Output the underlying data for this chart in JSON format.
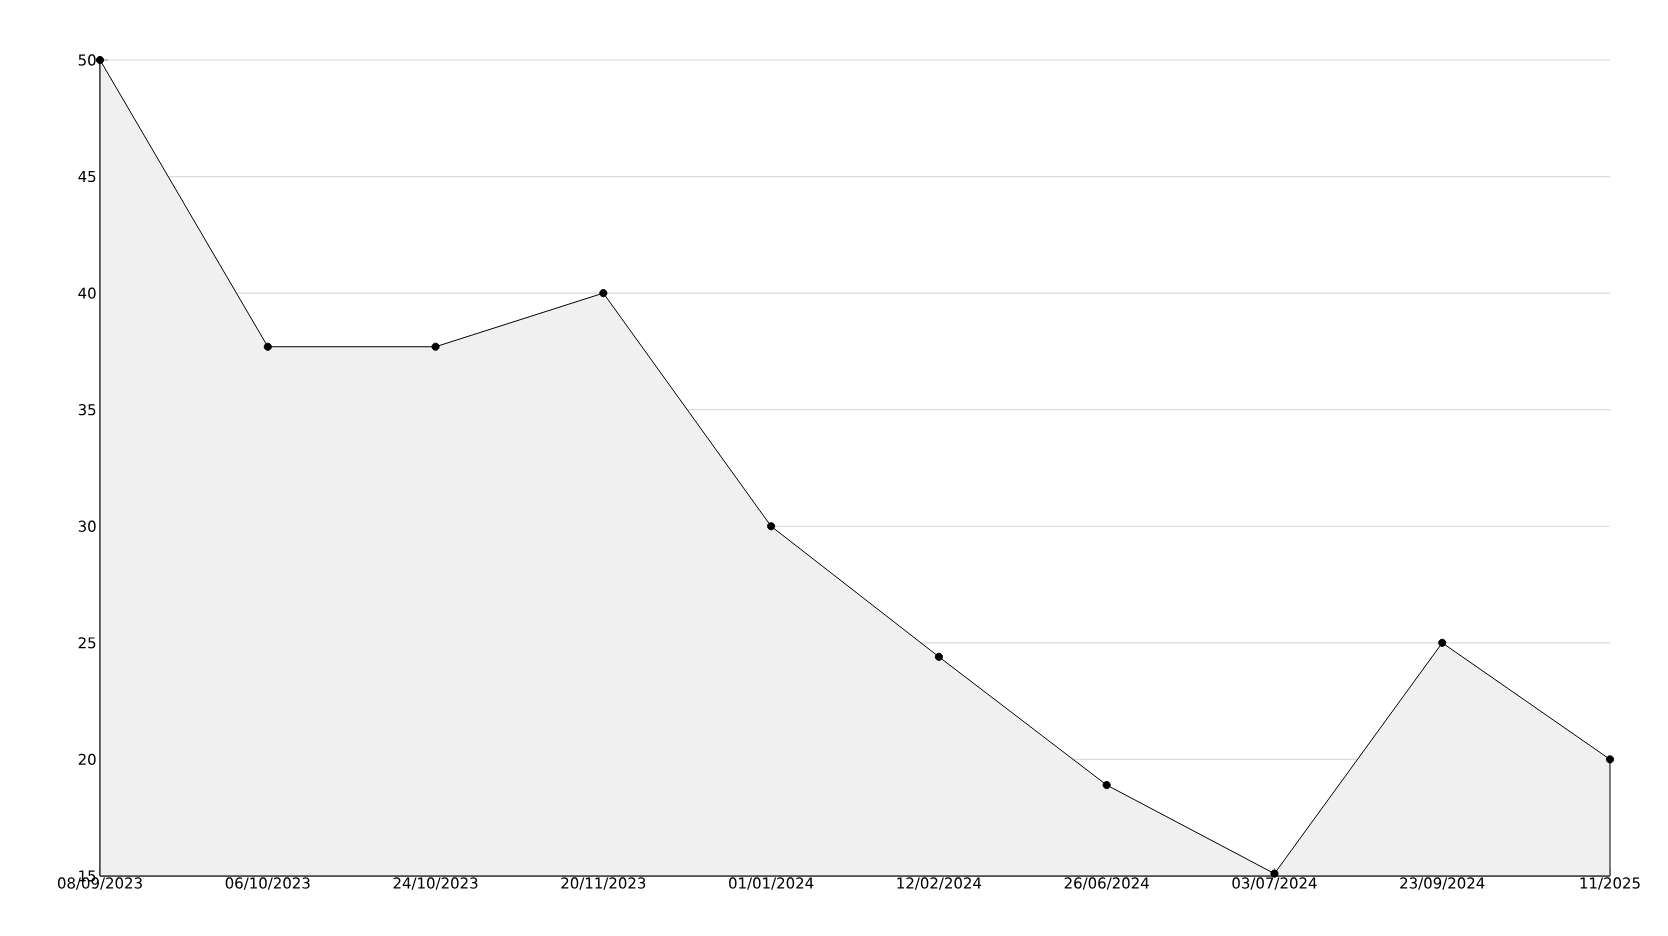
{
  "chart_data": {
    "type": "area",
    "categories": [
      "08/09/2023",
      "06/10/2023",
      "24/10/2023",
      "20/11/2023",
      "01/01/2024",
      "12/02/2024",
      "26/06/2024",
      "03/07/2024",
      "23/09/2024",
      "11/2025"
    ],
    "values": [
      50,
      37.7,
      37.7,
      40,
      30,
      24.4,
      18.9,
      15.1,
      25,
      20
    ],
    "color": "#f0f0f0",
    "ylim": [
      15,
      50
    ],
    "yticks": [
      15,
      20,
      25,
      30,
      35,
      40,
      45,
      50
    ],
    "grid": "y",
    "marker": "circle",
    "line_style": "solid"
  }
}
